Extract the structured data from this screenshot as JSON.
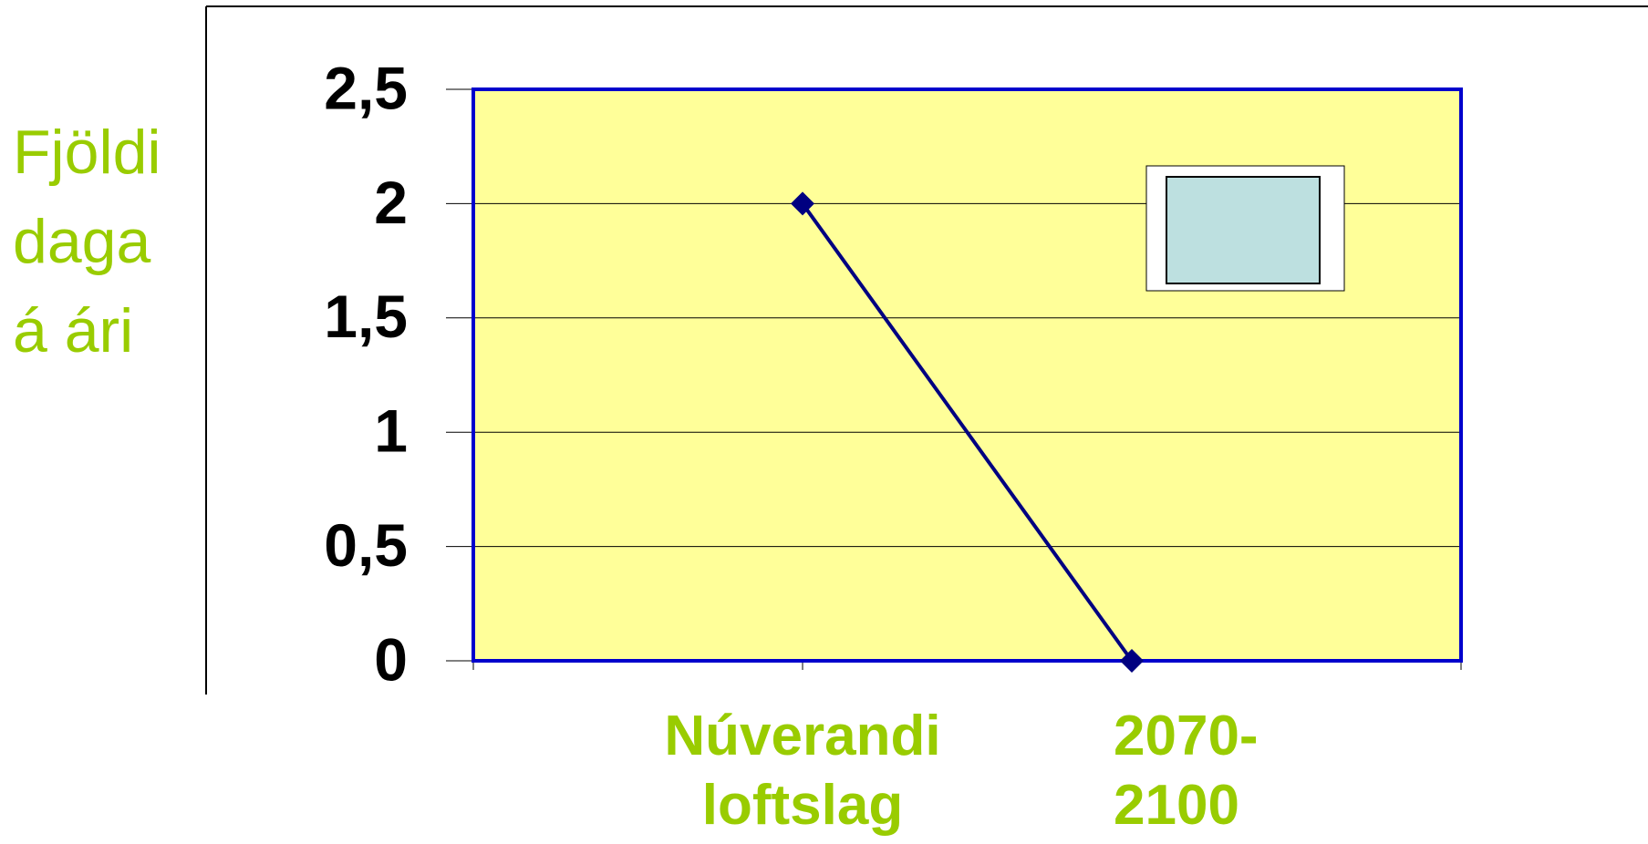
{
  "chart_data": {
    "type": "line",
    "y_label": "Fjöldi daga á ári",
    "categories": [
      "Núverandi loftslag",
      "2070-2100"
    ],
    "series": [
      {
        "color": "#000080",
        "values": [
          2,
          0
        ]
      }
    ],
    "ylim": [
      0,
      2.5
    ],
    "yticks": [
      0,
      {
        "value": 0.5,
        "label": "0,5"
      },
      1,
      {
        "value": 1.5,
        "label": "1,5"
      },
      2,
      {
        "value": 2.5,
        "label": "2,5"
      }
    ],
    "grid": true
  }
}
